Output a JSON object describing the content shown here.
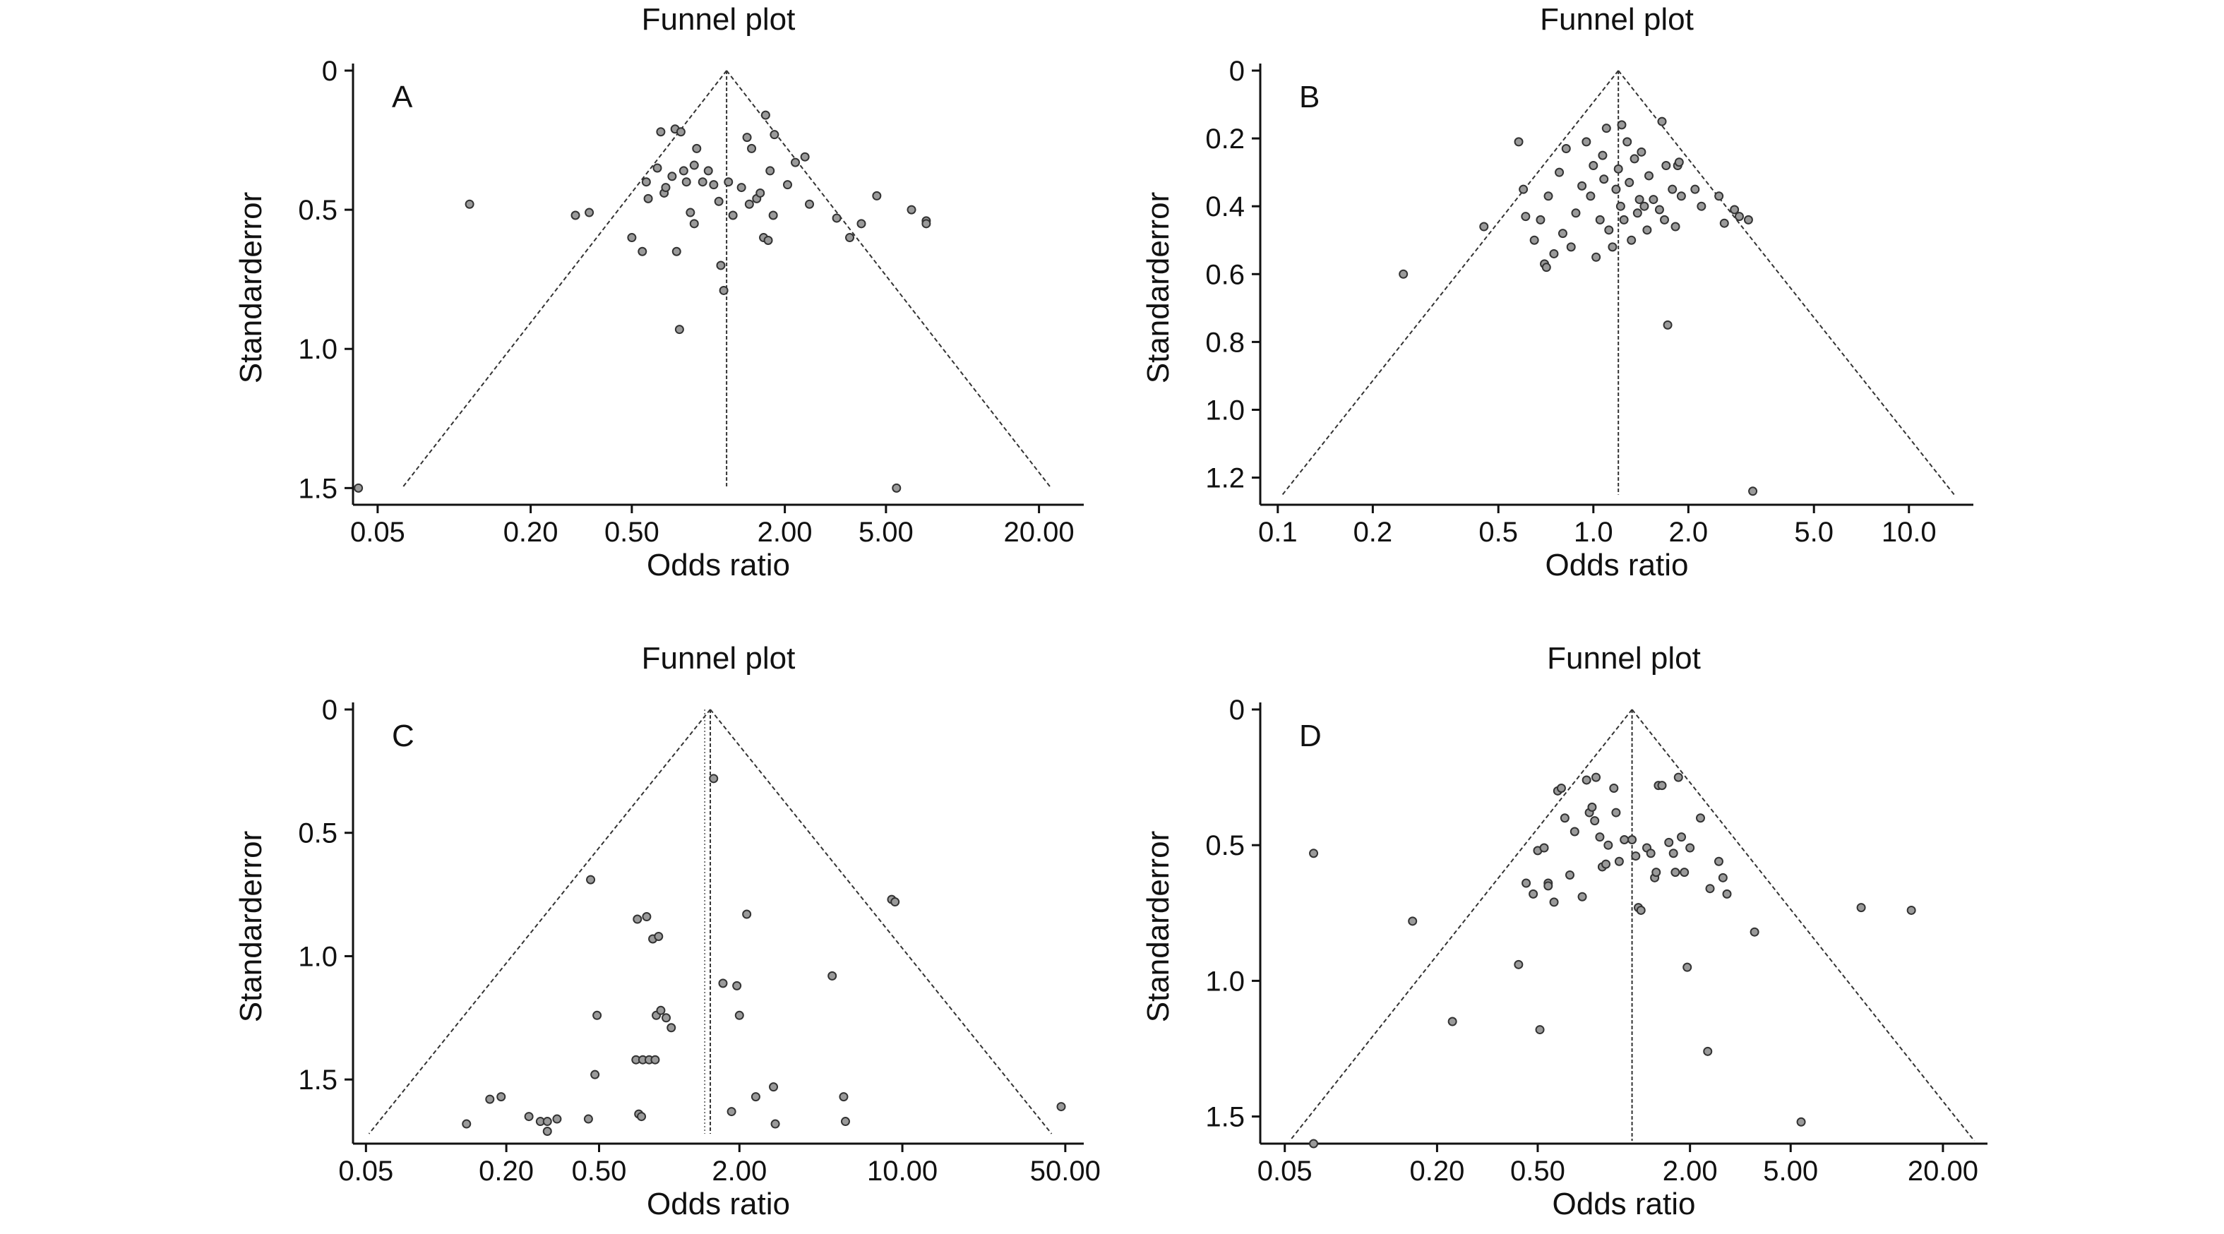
{
  "chart_data": [
    {
      "type": "scatter",
      "panel_label": "A",
      "title": "Funnel plot",
      "xlabel": "Odds ratio",
      "ylabel": "Standarderror",
      "x_scale": "log",
      "x_ticks": [
        0.05,
        0.2,
        0.5,
        2.0,
        5.0,
        20.0
      ],
      "x_tick_labels": [
        "0.05",
        "0.20",
        "0.50",
        "2.00",
        "5.00",
        "20.00"
      ],
      "y_ticks": [
        0,
        0.5,
        1.0,
        1.5
      ],
      "y_tick_labels": [
        "0",
        "0.5",
        "1.0",
        "1.5"
      ],
      "xlim": [
        0.04,
        30
      ],
      "ylim": [
        0,
        1.56
      ],
      "y_inverted": true,
      "pooled_or": 1.18,
      "funnel_max_se": 1.5,
      "points": [
        {
          "or": 0.042,
          "se": 1.5
        },
        {
          "or": 0.115,
          "se": 0.48
        },
        {
          "or": 0.3,
          "se": 0.52
        },
        {
          "or": 0.34,
          "se": 0.51
        },
        {
          "or": 0.5,
          "se": 0.6
        },
        {
          "or": 0.55,
          "se": 0.65
        },
        {
          "or": 0.57,
          "se": 0.4
        },
        {
          "or": 0.58,
          "se": 0.46
        },
        {
          "or": 0.63,
          "se": 0.35
        },
        {
          "or": 0.65,
          "se": 0.22
        },
        {
          "or": 0.67,
          "se": 0.44
        },
        {
          "or": 0.68,
          "se": 0.42
        },
        {
          "or": 0.72,
          "se": 0.38
        },
        {
          "or": 0.74,
          "se": 0.21
        },
        {
          "or": 0.75,
          "se": 0.65
        },
        {
          "or": 0.77,
          "se": 0.93
        },
        {
          "or": 0.78,
          "se": 0.22
        },
        {
          "or": 0.8,
          "se": 0.36
        },
        {
          "or": 0.82,
          "se": 0.4
        },
        {
          "or": 0.85,
          "se": 0.51
        },
        {
          "or": 0.88,
          "se": 0.55
        },
        {
          "or": 0.88,
          "se": 0.34
        },
        {
          "or": 0.9,
          "se": 0.28
        },
        {
          "or": 0.95,
          "se": 0.4
        },
        {
          "or": 1.0,
          "se": 0.36
        },
        {
          "or": 1.05,
          "se": 0.41
        },
        {
          "or": 1.1,
          "se": 0.47
        },
        {
          "or": 1.12,
          "se": 0.7
        },
        {
          "or": 1.15,
          "se": 0.79
        },
        {
          "or": 1.2,
          "se": 0.4
        },
        {
          "or": 1.25,
          "se": 0.52
        },
        {
          "or": 1.35,
          "se": 0.42
        },
        {
          "or": 1.42,
          "se": 0.24
        },
        {
          "or": 1.45,
          "se": 0.48
        },
        {
          "or": 1.48,
          "se": 0.28
        },
        {
          "or": 1.55,
          "se": 0.46
        },
        {
          "or": 1.6,
          "se": 0.44
        },
        {
          "or": 1.65,
          "se": 0.6
        },
        {
          "or": 1.68,
          "se": 0.16
        },
        {
          "or": 1.72,
          "se": 0.61
        },
        {
          "or": 1.75,
          "se": 0.36
        },
        {
          "or": 1.8,
          "se": 0.52
        },
        {
          "or": 1.82,
          "se": 0.23
        },
        {
          "or": 2.05,
          "se": 0.41
        },
        {
          "or": 2.2,
          "se": 0.33
        },
        {
          "or": 2.4,
          "se": 0.31
        },
        {
          "or": 2.5,
          "se": 0.48
        },
        {
          "or": 3.2,
          "se": 0.53
        },
        {
          "or": 3.6,
          "se": 0.6
        },
        {
          "or": 4.0,
          "se": 0.55
        },
        {
          "or": 4.6,
          "se": 0.45
        },
        {
          "or": 5.5,
          "se": 1.5
        },
        {
          "or": 6.3,
          "se": 0.5
        },
        {
          "or": 7.2,
          "se": 0.54
        },
        {
          "or": 7.2,
          "se": 0.55
        }
      ]
    },
    {
      "type": "scatter",
      "panel_label": "B",
      "title": "Funnel plot",
      "xlabel": "Odds ratio",
      "ylabel": "Standarderror",
      "x_scale": "log",
      "x_ticks": [
        0.1,
        0.2,
        0.5,
        1.0,
        2.0,
        5.0,
        10.0
      ],
      "x_tick_labels": [
        "0.1",
        "0.2",
        "0.5",
        "1.0",
        "2.0",
        "5.0",
        "10.0"
      ],
      "y_ticks": [
        0,
        0.2,
        0.4,
        0.6,
        0.8,
        1.0,
        1.2
      ],
      "y_tick_labels": [
        "0",
        "0.2",
        "0.4",
        "0.6",
        "0.8",
        "1.0",
        "1.2"
      ],
      "xlim": [
        0.088,
        16
      ],
      "ylim": [
        0,
        1.28
      ],
      "y_inverted": true,
      "pooled_or": 1.2,
      "funnel_max_se": 1.25,
      "points": [
        {
          "or": 0.25,
          "se": 0.6
        },
        {
          "or": 0.45,
          "se": 0.46
        },
        {
          "or": 0.58,
          "se": 0.21
        },
        {
          "or": 0.6,
          "se": 0.35
        },
        {
          "or": 0.61,
          "se": 0.43
        },
        {
          "or": 0.65,
          "se": 0.5
        },
        {
          "or": 0.68,
          "se": 0.44
        },
        {
          "or": 0.7,
          "se": 0.57
        },
        {
          "or": 0.71,
          "se": 0.58
        },
        {
          "or": 0.72,
          "se": 0.37
        },
        {
          "or": 0.75,
          "se": 0.54
        },
        {
          "or": 0.78,
          "se": 0.3
        },
        {
          "or": 0.8,
          "se": 0.48
        },
        {
          "or": 0.82,
          "se": 0.23
        },
        {
          "or": 0.85,
          "se": 0.52
        },
        {
          "or": 0.88,
          "se": 0.42
        },
        {
          "or": 0.92,
          "se": 0.34
        },
        {
          "or": 0.95,
          "se": 0.21
        },
        {
          "or": 0.98,
          "se": 0.37
        },
        {
          "or": 1.0,
          "se": 0.28
        },
        {
          "or": 1.02,
          "se": 0.55
        },
        {
          "or": 1.05,
          "se": 0.44
        },
        {
          "or": 1.07,
          "se": 0.25
        },
        {
          "or": 1.08,
          "se": 0.32
        },
        {
          "or": 1.1,
          "se": 0.17
        },
        {
          "or": 1.12,
          "se": 0.47
        },
        {
          "or": 1.15,
          "se": 0.52
        },
        {
          "or": 1.18,
          "se": 0.35
        },
        {
          "or": 1.2,
          "se": 0.29
        },
        {
          "or": 1.22,
          "se": 0.4
        },
        {
          "or": 1.23,
          "se": 0.16
        },
        {
          "or": 1.25,
          "se": 0.44
        },
        {
          "or": 1.28,
          "se": 0.21
        },
        {
          "or": 1.3,
          "se": 0.33
        },
        {
          "or": 1.32,
          "se": 0.5
        },
        {
          "or": 1.35,
          "se": 0.26
        },
        {
          "or": 1.38,
          "se": 0.42
        },
        {
          "or": 1.4,
          "se": 0.38
        },
        {
          "or": 1.42,
          "se": 0.24
        },
        {
          "or": 1.45,
          "se": 0.4
        },
        {
          "or": 1.48,
          "se": 0.47
        },
        {
          "or": 1.5,
          "se": 0.31
        },
        {
          "or": 1.55,
          "se": 0.38
        },
        {
          "or": 1.62,
          "se": 0.41
        },
        {
          "or": 1.65,
          "se": 0.15
        },
        {
          "or": 1.68,
          "se": 0.44
        },
        {
          "or": 1.7,
          "se": 0.28
        },
        {
          "or": 1.72,
          "se": 0.75
        },
        {
          "or": 1.78,
          "se": 0.35
        },
        {
          "or": 1.82,
          "se": 0.46
        },
        {
          "or": 1.85,
          "se": 0.28
        },
        {
          "or": 1.87,
          "se": 0.27
        },
        {
          "or": 1.9,
          "se": 0.37
        },
        {
          "or": 2.1,
          "se": 0.35
        },
        {
          "or": 2.2,
          "se": 0.4
        },
        {
          "or": 2.5,
          "se": 0.37
        },
        {
          "or": 2.6,
          "se": 0.45
        },
        {
          "or": 2.8,
          "se": 0.41
        },
        {
          "or": 2.9,
          "se": 0.43
        },
        {
          "or": 3.1,
          "se": 0.44
        },
        {
          "or": 3.2,
          "se": 1.24
        }
      ]
    },
    {
      "type": "scatter",
      "panel_label": "C",
      "title": "Funnel plot",
      "xlabel": "Odds ratio",
      "ylabel": "Standarderror",
      "x_scale": "log",
      "x_ticks": [
        0.05,
        0.2,
        0.5,
        2.0,
        10.0,
        50.0
      ],
      "x_tick_labels": [
        "0.05",
        "0.20",
        "0.50",
        "2.00",
        "10.00",
        "50.00"
      ],
      "y_ticks": [
        0,
        0.5,
        1.0,
        1.5
      ],
      "y_tick_labels": [
        "0",
        "0.5",
        "1.0",
        "1.5"
      ],
      "xlim": [
        0.044,
        60
      ],
      "ylim": [
        0,
        1.76
      ],
      "y_inverted": true,
      "pooled_or": 1.5,
      "pooled_or_secondary": 1.42,
      "funnel_max_se": 1.72,
      "points": [
        {
          "or": 0.135,
          "se": 1.68
        },
        {
          "or": 0.17,
          "se": 1.58
        },
        {
          "or": 0.19,
          "se": 1.57
        },
        {
          "or": 0.25,
          "se": 1.65
        },
        {
          "or": 0.28,
          "se": 1.67
        },
        {
          "or": 0.3,
          "se": 1.67
        },
        {
          "or": 0.3,
          "se": 1.71
        },
        {
          "or": 0.33,
          "se": 1.66
        },
        {
          "or": 0.45,
          "se": 1.66
        },
        {
          "or": 0.46,
          "se": 0.69
        },
        {
          "or": 0.48,
          "se": 1.48
        },
        {
          "or": 0.49,
          "se": 1.24
        },
        {
          "or": 0.72,
          "se": 1.42
        },
        {
          "or": 0.73,
          "se": 0.85
        },
        {
          "or": 0.74,
          "se": 1.64
        },
        {
          "or": 0.76,
          "se": 1.65
        },
        {
          "or": 0.77,
          "se": 1.42
        },
        {
          "or": 0.8,
          "se": 0.84
        },
        {
          "or": 0.82,
          "se": 1.42
        },
        {
          "or": 0.85,
          "se": 0.93
        },
        {
          "or": 0.87,
          "se": 1.42
        },
        {
          "or": 0.88,
          "se": 1.24
        },
        {
          "or": 0.9,
          "se": 0.92
        },
        {
          "or": 0.92,
          "se": 1.22
        },
        {
          "or": 0.97,
          "se": 1.25
        },
        {
          "or": 1.02,
          "se": 1.29
        },
        {
          "or": 1.55,
          "se": 0.28
        },
        {
          "or": 1.7,
          "se": 1.11
        },
        {
          "or": 1.85,
          "se": 1.63
        },
        {
          "or": 1.95,
          "se": 1.12
        },
        {
          "or": 2.0,
          "se": 1.24
        },
        {
          "or": 2.15,
          "se": 0.83
        },
        {
          "or": 2.35,
          "se": 1.57
        },
        {
          "or": 2.8,
          "se": 1.53
        },
        {
          "or": 2.85,
          "se": 1.68
        },
        {
          "or": 5.0,
          "se": 1.08
        },
        {
          "or": 5.6,
          "se": 1.57
        },
        {
          "or": 5.7,
          "se": 1.67
        },
        {
          "or": 9.0,
          "se": 0.77
        },
        {
          "or": 9.3,
          "se": 0.78
        },
        {
          "or": 48.0,
          "se": 1.61
        }
      ]
    },
    {
      "type": "scatter",
      "panel_label": "D",
      "title": "Funnel plot",
      "xlabel": "Odds ratio",
      "ylabel": "Standarderror",
      "x_scale": "log",
      "x_ticks": [
        0.05,
        0.2,
        0.5,
        2.0,
        5.0,
        20.0
      ],
      "x_tick_labels": [
        "0.05",
        "0.20",
        "0.50",
        "2.00",
        "5.00",
        "20.00"
      ],
      "y_ticks": [
        0,
        0.5,
        1.0,
        1.5
      ],
      "y_tick_labels": [
        "0",
        "0.5",
        "1.0",
        "1.5"
      ],
      "xlim": [
        0.04,
        30
      ],
      "ylim": [
        0,
        1.6
      ],
      "y_inverted": true,
      "pooled_or": 1.18,
      "funnel_max_se": 1.59,
      "points": [
        {
          "or": 0.065,
          "se": 0.53
        },
        {
          "or": 0.065,
          "se": 1.6
        },
        {
          "or": 0.16,
          "se": 0.78
        },
        {
          "or": 0.23,
          "se": 1.15
        },
        {
          "or": 0.42,
          "se": 0.94
        },
        {
          "or": 0.45,
          "se": 0.64
        },
        {
          "or": 0.48,
          "se": 0.68
        },
        {
          "or": 0.5,
          "se": 0.52
        },
        {
          "or": 0.51,
          "se": 1.18
        },
        {
          "or": 0.53,
          "se": 0.51
        },
        {
          "or": 0.55,
          "se": 0.64
        },
        {
          "or": 0.55,
          "se": 0.65
        },
        {
          "or": 0.58,
          "se": 0.71
        },
        {
          "or": 0.6,
          "se": 0.3
        },
        {
          "or": 0.62,
          "se": 0.29
        },
        {
          "or": 0.64,
          "se": 0.4
        },
        {
          "or": 0.67,
          "se": 0.61
        },
        {
          "or": 0.7,
          "se": 0.45
        },
        {
          "or": 0.75,
          "se": 0.69
        },
        {
          "or": 0.78,
          "se": 0.26
        },
        {
          "or": 0.8,
          "se": 0.38
        },
        {
          "or": 0.82,
          "se": 0.36
        },
        {
          "or": 0.84,
          "se": 0.41
        },
        {
          "or": 0.85,
          "se": 0.25
        },
        {
          "or": 0.88,
          "se": 0.47
        },
        {
          "or": 0.9,
          "se": 0.58
        },
        {
          "or": 0.93,
          "se": 0.57
        },
        {
          "or": 0.95,
          "se": 0.5
        },
        {
          "or": 1.0,
          "se": 0.29
        },
        {
          "or": 1.02,
          "se": 0.38
        },
        {
          "or": 1.05,
          "se": 0.56
        },
        {
          "or": 1.1,
          "se": 0.48
        },
        {
          "or": 1.18,
          "se": 0.48
        },
        {
          "or": 1.22,
          "se": 0.54
        },
        {
          "or": 1.25,
          "se": 0.73
        },
        {
          "or": 1.28,
          "se": 0.74
        },
        {
          "or": 1.35,
          "se": 0.51
        },
        {
          "or": 1.4,
          "se": 0.53
        },
        {
          "or": 1.45,
          "se": 0.62
        },
        {
          "or": 1.47,
          "se": 0.6
        },
        {
          "or": 1.5,
          "se": 0.28
        },
        {
          "or": 1.55,
          "se": 0.28
        },
        {
          "or": 1.65,
          "se": 0.49
        },
        {
          "or": 1.72,
          "se": 0.53
        },
        {
          "or": 1.75,
          "se": 0.6
        },
        {
          "or": 1.8,
          "se": 0.25
        },
        {
          "or": 1.85,
          "se": 0.47
        },
        {
          "or": 1.9,
          "se": 0.6
        },
        {
          "or": 1.95,
          "se": 0.95
        },
        {
          "or": 2.0,
          "se": 0.51
        },
        {
          "or": 2.2,
          "se": 0.4
        },
        {
          "or": 2.35,
          "se": 1.26
        },
        {
          "or": 2.4,
          "se": 0.66
        },
        {
          "or": 2.6,
          "se": 0.56
        },
        {
          "or": 2.7,
          "se": 0.62
        },
        {
          "or": 2.8,
          "se": 0.68
        },
        {
          "or": 3.6,
          "se": 0.82
        },
        {
          "or": 5.5,
          "se": 1.52
        },
        {
          "or": 9.5,
          "se": 0.73
        },
        {
          "or": 15.0,
          "se": 0.74
        }
      ]
    }
  ]
}
